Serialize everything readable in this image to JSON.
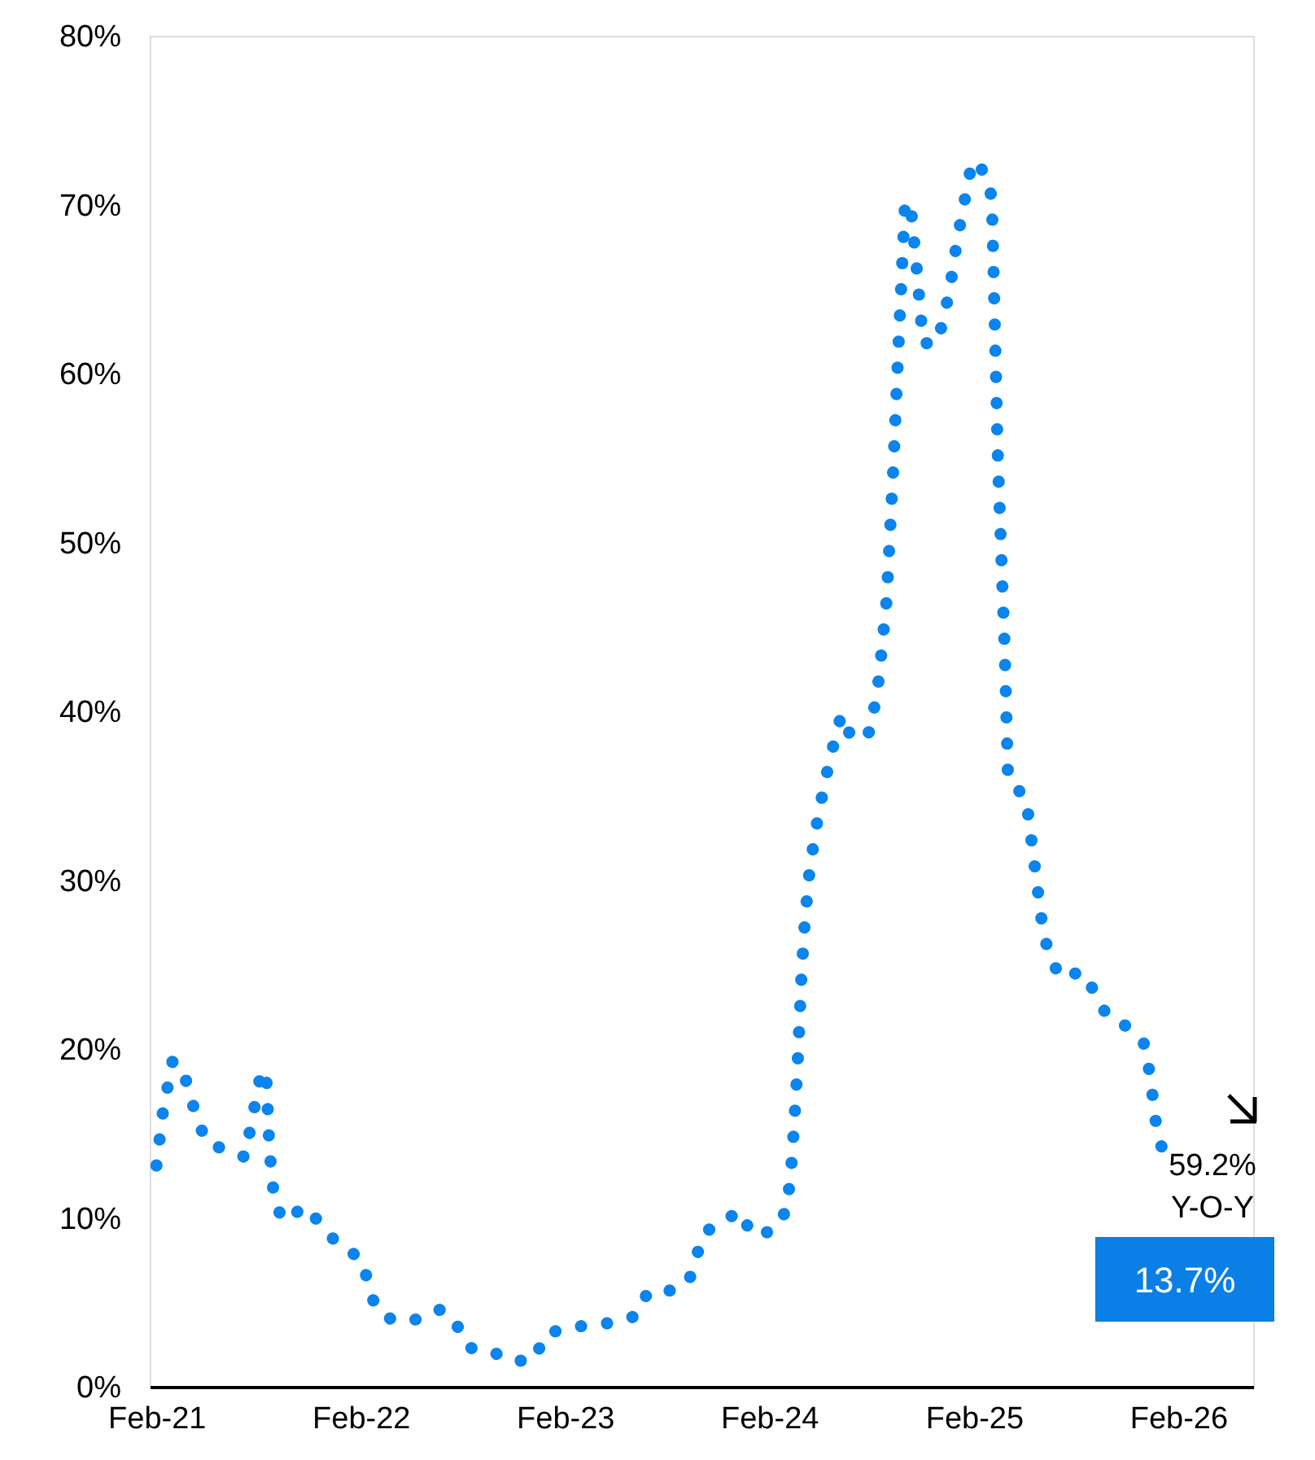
{
  "chart_data": {
    "type": "line",
    "line_style": "dotted",
    "marker": "none",
    "grid": false,
    "x": [
      "2021-02-01",
      "2021-02-13",
      "2021-03-02",
      "2021-03-20",
      "2021-04-15",
      "2021-05-03",
      "2021-06-10",
      "2021-07-09",
      "2021-08-07",
      "2021-08-16",
      "2021-08-22",
      "2021-08-31",
      "2021-09-17",
      "2021-10-25",
      "2021-12-23",
      "2022-02-02",
      "2022-02-28",
      "2022-04-01",
      "2022-05-18",
      "2022-06-25",
      "2022-07-22",
      "2022-08-14",
      "2022-09-18",
      "2022-10-26",
      "2022-12-09",
      "2022-12-27",
      "2023-02-06",
      "2023-04-29",
      "2023-06-09",
      "2023-06-29",
      "2023-08-09",
      "2023-09-10",
      "2023-10-07",
      "2023-11-14",
      "2023-12-13",
      "2023-12-31",
      "2024-02-07",
      "2024-03-04",
      "2024-03-13",
      "2024-03-19",
      "2024-03-24",
      "2024-03-30",
      "2024-04-05",
      "2024-04-14",
      "2024-04-29",
      "2024-05-19",
      "2024-06-09",
      "2024-06-29",
      "2024-07-31",
      "2024-08-15",
      "2024-08-29",
      "2024-09-10",
      "2024-09-22",
      "2024-10-01",
      "2024-10-12",
      "2024-10-21",
      "2024-11-02",
      "2024-11-28",
      "2024-12-19",
      "2025-01-02",
      "2025-01-11",
      "2025-01-29",
      "2025-02-21",
      "2025-03-05",
      "2025-03-16",
      "2025-03-28",
      "2025-04-03",
      "2025-05-05",
      "2025-05-23",
      "2025-06-04",
      "2025-06-15",
      "2025-07-06",
      "2025-08-13",
      "2025-09-08",
      "2025-09-26",
      "2025-11-03",
      "2025-12-05",
      "2025-12-17",
      "2025-12-23",
      "2026-01-03"
    ],
    "series": [
      {
        "color": "#0a84ee",
        "values": [
          13.1,
          16.4,
          19.3,
          18.8,
          15.8,
          14.4,
          14.0,
          13.6,
          18.6,
          18.7,
          14.0,
          10.9,
          9.8,
          10.7,
          8.4,
          7.6,
          4.6,
          3.9,
          4.0,
          4.6,
          3.7,
          2.3,
          2.2,
          1.5,
          1.6,
          3.1,
          3.5,
          3.8,
          4.2,
          5.6,
          5.7,
          6.2,
          9.1,
          9.9,
          10.4,
          9.0,
          9.2,
          10.5,
          13.6,
          16.8,
          19.9,
          24.5,
          27.7,
          30.8,
          33.9,
          37.1,
          39.8,
          38.3,
          38.8,
          41.9,
          46.6,
          54.5,
          63.8,
          70.2,
          69.6,
          66.5,
          61.8,
          61.8,
          64.8,
          67.9,
          69.5,
          72.6,
          71.9,
          70.4,
          54.7,
          43.6,
          35.9,
          34.9,
          30.2,
          27.1,
          25.6,
          24.2,
          24.6,
          23.2,
          22.0,
          21.3,
          20.2,
          17.3,
          15.7,
          14.1
        ]
      }
    ],
    "xlim": [
      "2021-01-20",
      "2026-06-15"
    ],
    "xticks": [
      {
        "value": "2021-02-01",
        "label": "Feb-21"
      },
      {
        "value": "2022-02-01",
        "label": "Feb-22"
      },
      {
        "value": "2023-02-01",
        "label": "Feb-23"
      },
      {
        "value": "2024-02-01",
        "label": "Feb-24"
      },
      {
        "value": "2025-02-01",
        "label": "Feb-25"
      },
      {
        "value": "2026-02-01",
        "label": "Feb-26"
      }
    ],
    "ylim": [
      0,
      80
    ],
    "yticks": [
      {
        "value": 0,
        "label": "0%"
      },
      {
        "value": 10,
        "label": "10%"
      },
      {
        "value": 20,
        "label": "20%"
      },
      {
        "value": 30,
        "label": "30%"
      },
      {
        "value": 40,
        "label": "40%"
      },
      {
        "value": 50,
        "label": "50%"
      },
      {
        "value": 60,
        "label": "60%"
      },
      {
        "value": 70,
        "label": "70%"
      },
      {
        "value": 80,
        "label": "80%"
      }
    ],
    "annotations": [
      "59.2%",
      "Y-O-Y",
      "13.7%"
    ]
  }
}
